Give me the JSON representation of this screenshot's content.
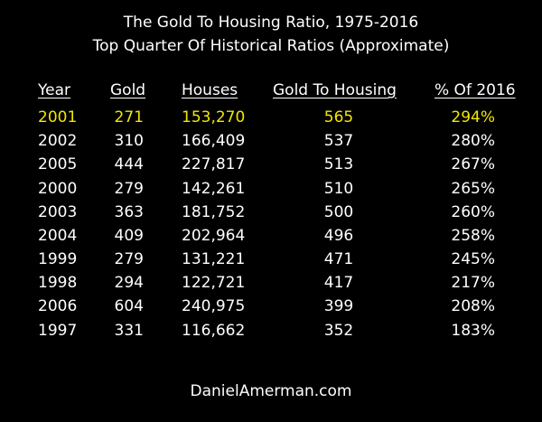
{
  "title_line1": "The Gold To Housing Ratio, 1975-2016",
  "title_line2": "Top Quarter Of Historical Ratios (Approximate)",
  "headers": {
    "year": "Year",
    "gold": "Gold",
    "houses": "Houses",
    "ratio": "Gold To Housing",
    "pct": "% Of 2016"
  },
  "rows": [
    {
      "year": "2001",
      "gold": "271",
      "houses": "153,270",
      "ratio": "565",
      "pct": "294%"
    },
    {
      "year": "2002",
      "gold": "310",
      "houses": "166,409",
      "ratio": "537",
      "pct": "280%"
    },
    {
      "year": "2005",
      "gold": "444",
      "houses": "227,817",
      "ratio": "513",
      "pct": "267%"
    },
    {
      "year": "2000",
      "gold": "279",
      "houses": "142,261",
      "ratio": "510",
      "pct": "265%"
    },
    {
      "year": "2003",
      "gold": "363",
      "houses": "181,752",
      "ratio": "500",
      "pct": "260%"
    },
    {
      "year": "2004",
      "gold": "409",
      "houses": "202,964",
      "ratio": "496",
      "pct": "258%"
    },
    {
      "year": "1999",
      "gold": "279",
      "houses": "131,221",
      "ratio": "471",
      "pct": "245%"
    },
    {
      "year": "1998",
      "gold": "294",
      "houses": "122,721",
      "ratio": "417",
      "pct": "217%"
    },
    {
      "year": "2006",
      "gold": "604",
      "houses": "240,975",
      "ratio": "399",
      "pct": "208%"
    },
    {
      "year": "1997",
      "gold": "331",
      "houses": "116,662",
      "ratio": "352",
      "pct": "183%"
    }
  ],
  "highlight_color": "#f2e600",
  "footer": "DanielAmerman.com"
}
